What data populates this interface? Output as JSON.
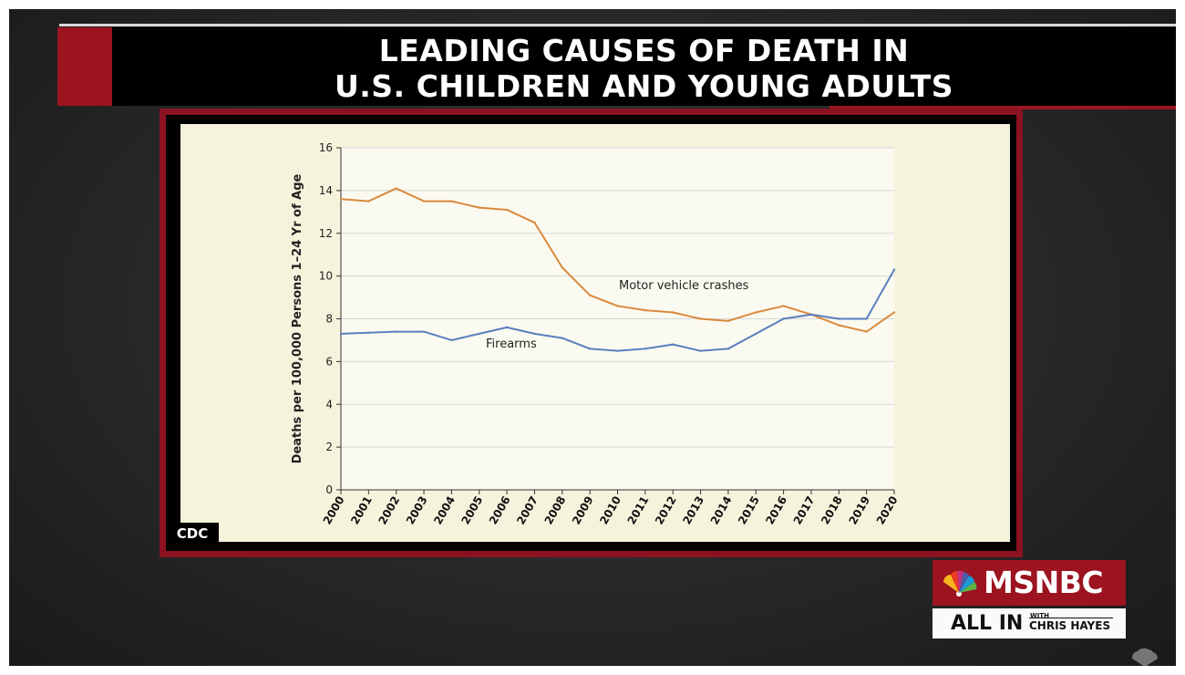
{
  "header": {
    "title_line1": "LEADING CAUSES OF DEATH IN",
    "title_line2": "U.S. CHILDREN AND YOUNG ADULTS"
  },
  "source_tag": "CDC",
  "branding": {
    "network": "MSNBC",
    "show_name": "ALL IN",
    "show_with": "WITH",
    "host": "CHRIS HAYES"
  },
  "colors": {
    "accent_red": "#9b1420",
    "motor_vehicle_line": "#d98a3d",
    "firearms_line": "#5a7fc0",
    "chart_background": "#f6f3dc"
  },
  "chart_data": {
    "type": "line",
    "title": "",
    "xlabel": "",
    "ylabel": "Deaths per 100,000 Persons 1–24 Yr of Age",
    "ylim": [
      0,
      16
    ],
    "yticks": [
      0,
      2,
      4,
      6,
      8,
      10,
      12,
      14,
      16
    ],
    "grid": true,
    "x": [
      "2000",
      "2001",
      "2002",
      "2003",
      "2004",
      "2005",
      "2006",
      "2007",
      "2008",
      "2009",
      "2010",
      "2011",
      "2012",
      "2013",
      "2014",
      "2015",
      "2016",
      "2017",
      "2018",
      "2019",
      "2020"
    ],
    "series": [
      {
        "name": "Motor vehicle crashes",
        "color": "#d98a3d",
        "values": [
          13.6,
          13.5,
          14.1,
          13.5,
          13.5,
          13.2,
          13.1,
          12.5,
          10.4,
          9.1,
          8.6,
          8.4,
          8.3,
          8.0,
          7.9,
          8.3,
          8.6,
          8.2,
          7.7,
          7.4,
          8.3
        ]
      },
      {
        "name": "Firearms",
        "color": "#5a7fc0",
        "values": [
          7.3,
          7.35,
          7.4,
          7.4,
          7.0,
          7.3,
          7.6,
          7.3,
          7.1,
          6.6,
          6.5,
          6.6,
          6.8,
          6.5,
          6.6,
          7.3,
          8.0,
          8.2,
          8.0,
          8.0,
          10.3
        ]
      }
    ]
  }
}
